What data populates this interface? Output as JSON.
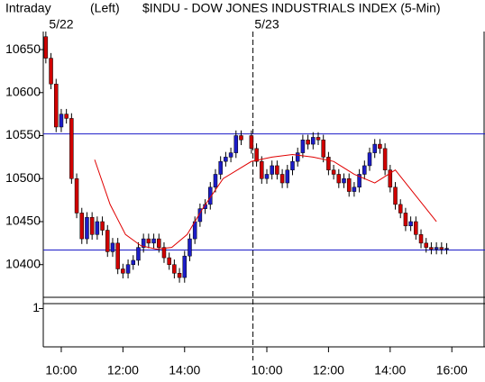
{
  "chart_data": {
    "type": "candlestick",
    "header": [
      "Intraday",
      "(Left)",
      "$INDU - DOW JONES INDUSTRIALS INDEX  (5-Min)"
    ],
    "day_labels": [
      {
        "value": 30,
        "label": "5/22"
      },
      {
        "value": 430,
        "label": "5/23"
      }
    ],
    "day_separator": 403,
    "x": [
      0,
      10,
      20,
      30,
      40,
      50,
      60,
      70,
      80,
      90,
      100,
      110,
      120,
      130,
      140,
      150,
      160,
      170,
      180,
      190,
      200,
      210,
      220,
      230,
      240,
      250,
      260,
      270,
      280,
      290,
      300,
      310,
      320,
      330,
      340,
      350,
      360,
      370,
      380,
      400,
      410,
      420,
      430,
      440,
      450,
      460,
      470,
      480,
      490,
      500,
      510,
      520,
      530,
      540,
      550,
      560,
      570,
      580,
      590,
      600,
      610,
      620,
      630,
      640,
      650,
      660,
      670,
      680,
      690,
      700,
      710,
      720,
      730,
      740,
      750,
      760,
      770,
      780
    ],
    "open": [
      10665,
      10640,
      10610,
      10560,
      10575,
      10570,
      10500,
      10460,
      10430,
      10455,
      10435,
      10450,
      10440,
      10415,
      10425,
      10395,
      10390,
      10400,
      10405,
      10420,
      10430,
      10425,
      10430,
      10420,
      10408,
      10400,
      10390,
      10385,
      10410,
      10430,
      10450,
      10465,
      10470,
      10490,
      10505,
      10520,
      10525,
      10530,
      10550,
      10550,
      10535,
      10520,
      10500,
      10505,
      10515,
      10505,
      10495,
      10510,
      10520,
      10530,
      10545,
      10540,
      10548,
      10545,
      10525,
      10510,
      10505,
      10495,
      10500,
      10485,
      10490,
      10505,
      10515,
      10530,
      10540,
      10535,
      10510,
      10490,
      10470,
      10460,
      10445,
      10450,
      10435,
      10425,
      10420,
      10418,
      10420,
      10418
    ],
    "high": [
      10671,
      10646,
      10616,
      10581,
      10581,
      10576,
      10506,
      10466,
      10461,
      10461,
      10456,
      10456,
      10446,
      10431,
      10431,
      10401,
      10406,
      10411,
      10426,
      10436,
      10436,
      10436,
      10436,
      10426,
      10414,
      10406,
      10396,
      10416,
      10436,
      10456,
      10471,
      10476,
      10496,
      10511,
      10526,
      10531,
      10536,
      10556,
      10556,
      10556,
      10541,
      10526,
      10511,
      10521,
      10521,
      10511,
      10516,
      10526,
      10536,
      10551,
      10551,
      10554,
      10554,
      10551,
      10531,
      10516,
      10511,
      10506,
      10506,
      10496,
      10511,
      10521,
      10536,
      10546,
      10546,
      10541,
      10516,
      10496,
      10476,
      10466,
      10456,
      10456,
      10441,
      10431,
      10426,
      10426,
      10426,
      10425
    ],
    "low": [
      10634,
      10604,
      10554,
      10554,
      10564,
      10494,
      10454,
      10424,
      10424,
      10429,
      10429,
      10434,
      10409,
      10409,
      10389,
      10384,
      10384,
      10394,
      10399,
      10414,
      10419,
      10419,
      10414,
      10402,
      10394,
      10384,
      10379,
      10379,
      10404,
      10424,
      10444,
      10459,
      10464,
      10484,
      10499,
      10514,
      10519,
      10524,
      10539,
      10529,
      10514,
      10494,
      10494,
      10499,
      10499,
      10489,
      10489,
      10504,
      10514,
      10524,
      10534,
      10534,
      10539,
      10519,
      10504,
      10499,
      10489,
      10489,
      10479,
      10479,
      10484,
      10499,
      10509,
      10524,
      10529,
      10504,
      10484,
      10464,
      10454,
      10439,
      10439,
      10429,
      10419,
      10414,
      10412,
      10412,
      10412,
      10412
    ],
    "close": [
      10640,
      10610,
      10560,
      10575,
      10570,
      10500,
      10460,
      10430,
      10455,
      10435,
      10450,
      10440,
      10415,
      10425,
      10395,
      10390,
      10400,
      10405,
      10420,
      10430,
      10425,
      10430,
      10420,
      10408,
      10400,
      10390,
      10385,
      10410,
      10430,
      10450,
      10465,
      10470,
      10490,
      10505,
      10520,
      10525,
      10530,
      10550,
      10545,
      10535,
      10520,
      10500,
      10505,
      10515,
      10505,
      10495,
      10510,
      10520,
      10530,
      10545,
      10540,
      10548,
      10545,
      10525,
      10510,
      10505,
      10495,
      10500,
      10485,
      10490,
      10505,
      10515,
      10530,
      10540,
      10535,
      10510,
      10490,
      10470,
      10460,
      10445,
      10450,
      10435,
      10425,
      10420,
      10418,
      10420,
      10418,
      10419
    ],
    "up_color": "#1c1cc8",
    "down_color": "#d00000",
    "moving_average": {
      "color": "#e00000",
      "x": [
        95,
        125,
        155,
        185,
        215,
        245,
        275,
        305,
        345,
        400,
        440,
        480,
        520,
        560,
        600,
        640,
        680,
        720,
        760
      ],
      "values": [
        10522,
        10470,
        10435,
        10422,
        10418,
        10420,
        10435,
        10465,
        10500,
        10520,
        10525,
        10528,
        10525,
        10520,
        10505,
        10495,
        10510,
        10480,
        10450
      ]
    },
    "hlines": [
      10552,
      10417
    ],
    "hline_color": "#1c1cc8",
    "xlim": [
      -5,
      851
    ],
    "xticks": [
      {
        "value": 30,
        "label": "10:00"
      },
      {
        "value": 150,
        "label": "12:00"
      },
      {
        "value": 270,
        "label": "14:00"
      },
      {
        "value": 430,
        "label": "10:00"
      },
      {
        "value": 550,
        "label": "12:00"
      },
      {
        "value": 670,
        "label": "14:00"
      },
      {
        "value": 790,
        "label": "16:00"
      }
    ],
    "ylim": [
      10362,
      10671
    ],
    "yticks": [
      10400,
      10450,
      10500,
      10550,
      10600,
      10650
    ],
    "lower_ylim": [
      0,
      1.13
    ],
    "lower_yticks": [
      1
    ]
  }
}
